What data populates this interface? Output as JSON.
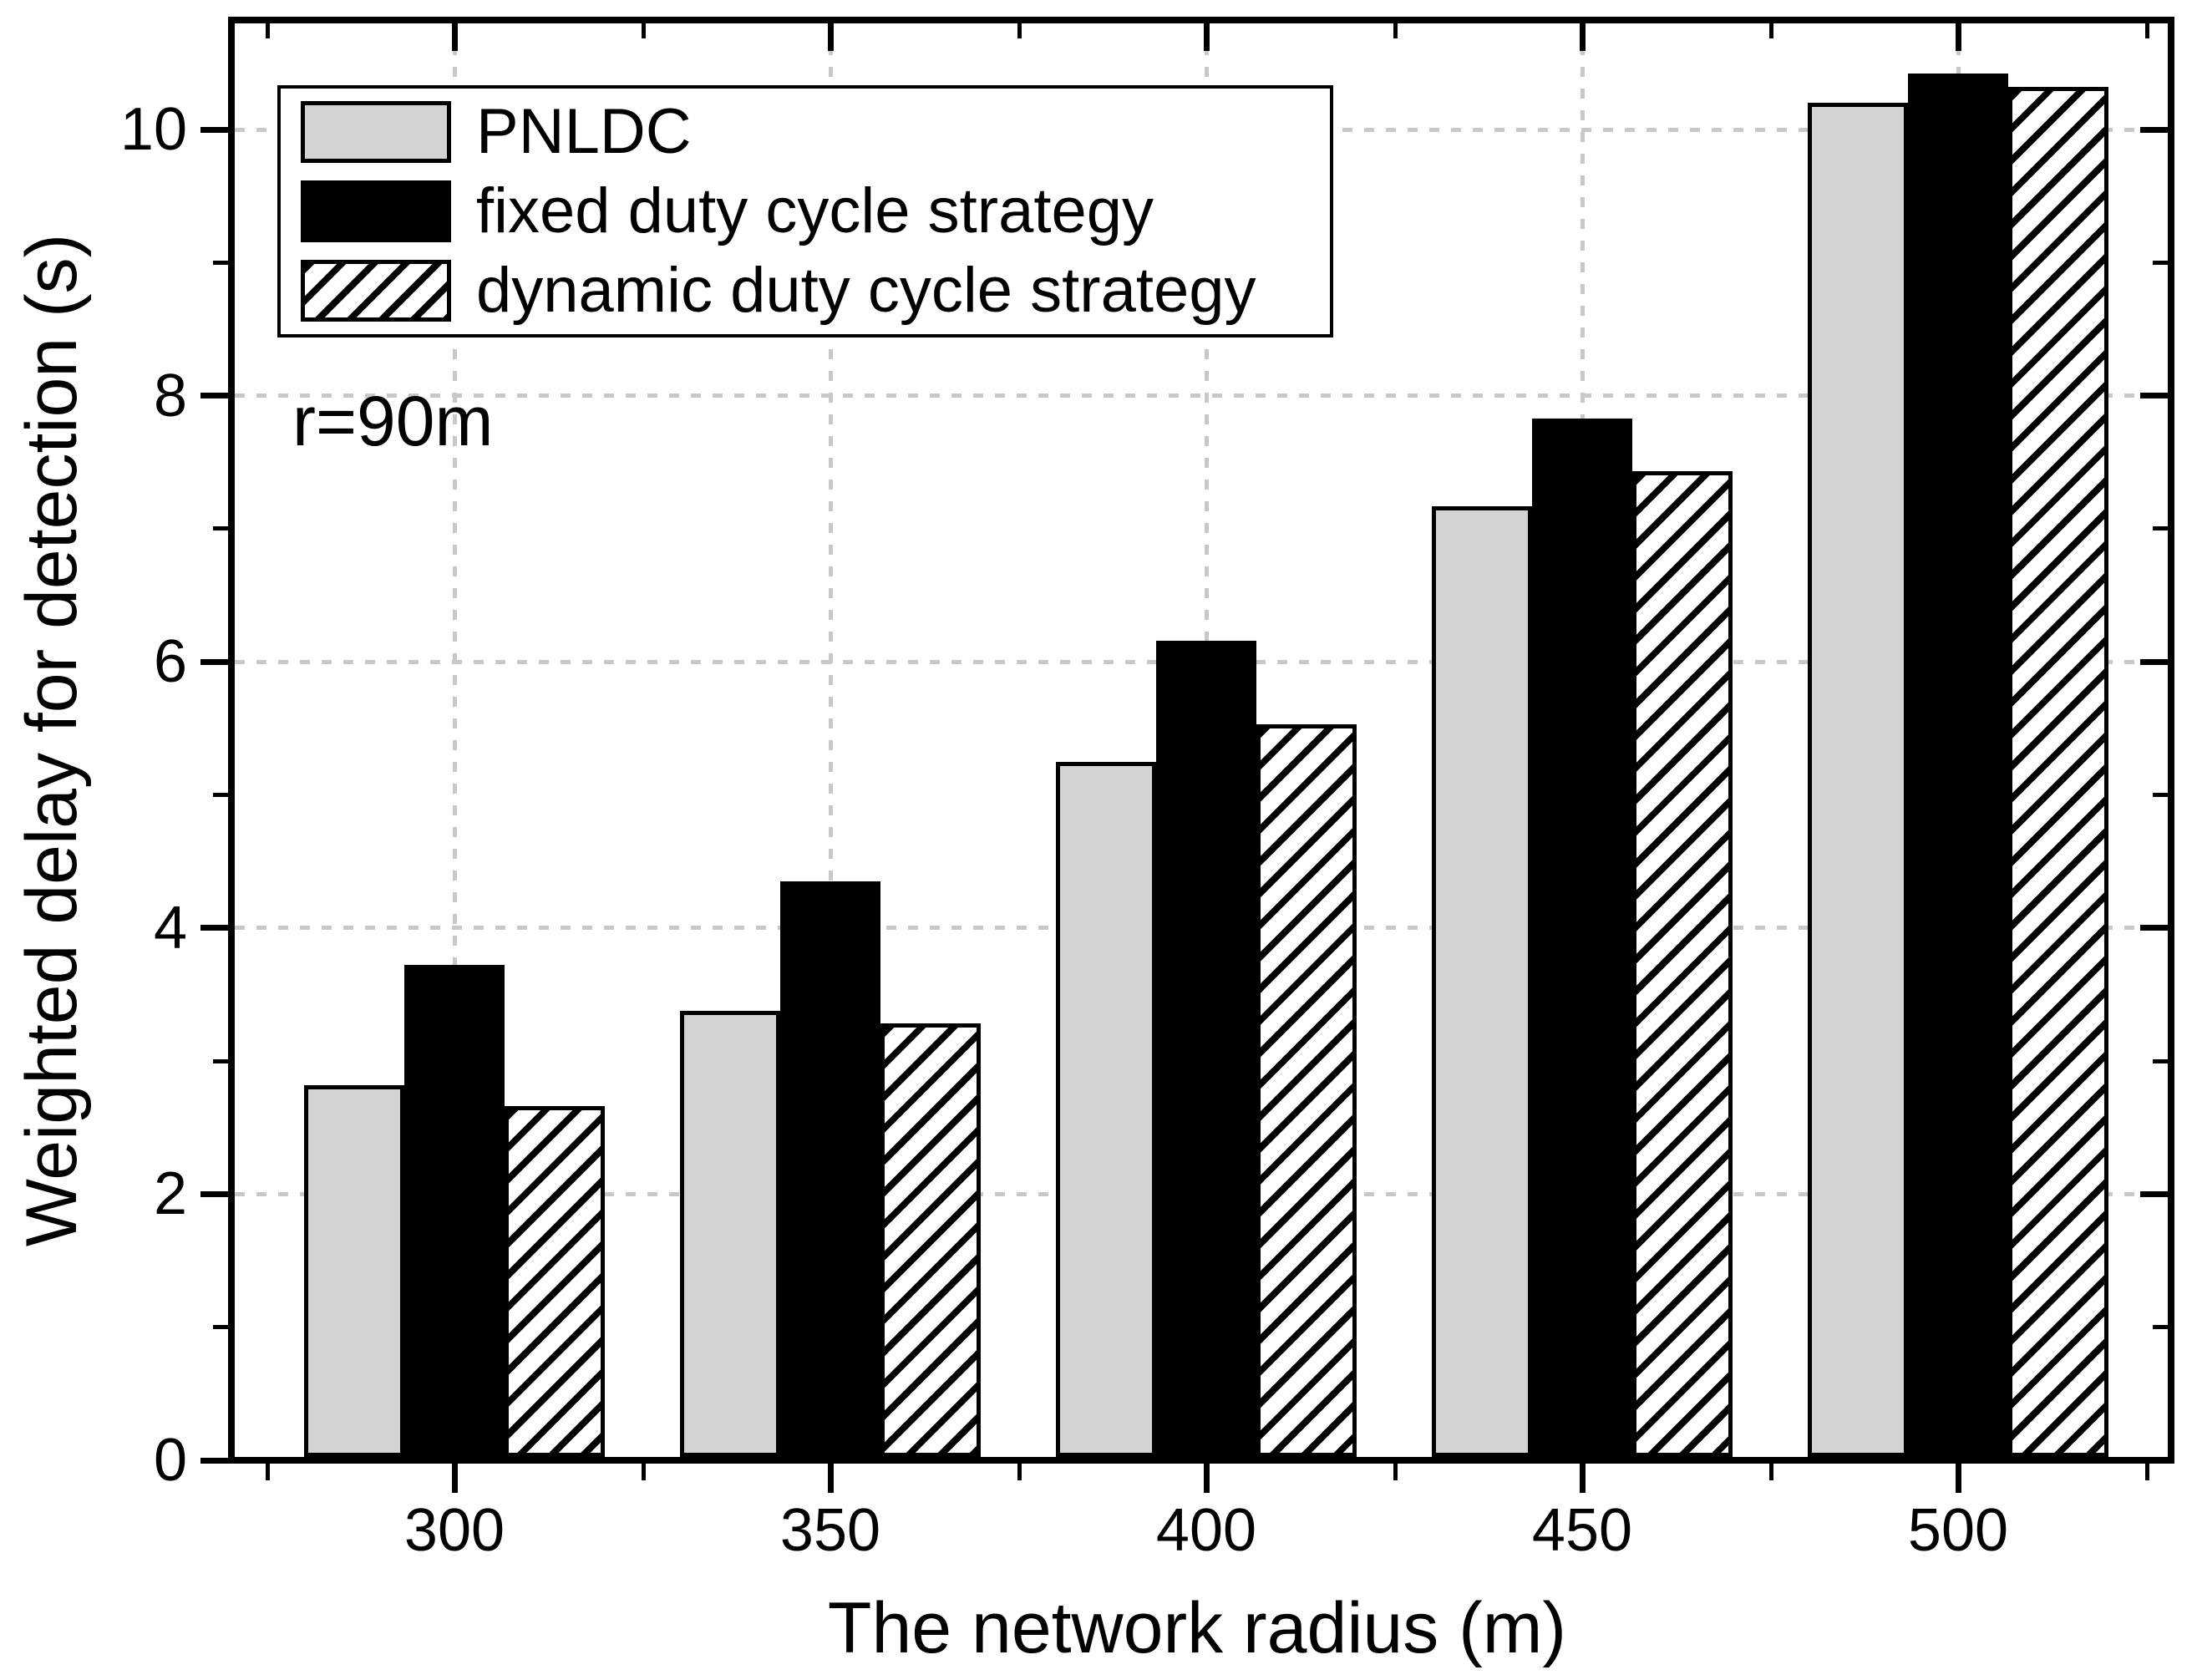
{
  "chart_data": {
    "type": "bar",
    "title": "",
    "xlabel": "The network radius (m)",
    "ylabel": "Weighted delay for detection (s)",
    "annotation": "r=90m",
    "categories": [
      "300",
      "350",
      "400",
      "450",
      "500"
    ],
    "series": [
      {
        "name": "PNLDC",
        "fill": "#d3d3d3",
        "values": [
          2.82,
          3.38,
          5.25,
          7.17,
          10.2
        ]
      },
      {
        "name": "fixed duty cycle strategy",
        "fill": "#000000",
        "values": [
          3.72,
          4.35,
          6.16,
          7.83,
          10.42
        ]
      },
      {
        "name": "dynamic duty cycle strategy",
        "fill": "hatch",
        "values": [
          2.66,
          3.28,
          5.53,
          7.43,
          10.32
        ]
      }
    ],
    "ylim": [
      0,
      10.8
    ],
    "yticks": [
      "0",
      "2",
      "4",
      "6",
      "8",
      "10"
    ],
    "yticks_minor": [
      1,
      3,
      5,
      7,
      9
    ],
    "grid": "dotted gray horizontal at major y ticks and vertical at category centers",
    "legend_position": "upper-left",
    "colors": {
      "grid": "#c8c8c8",
      "axis": "#000000",
      "bar_gray": "#d3d3d3",
      "bar_black": "#000000",
      "hatch_line": "#000000",
      "background": "#ffffff"
    }
  }
}
